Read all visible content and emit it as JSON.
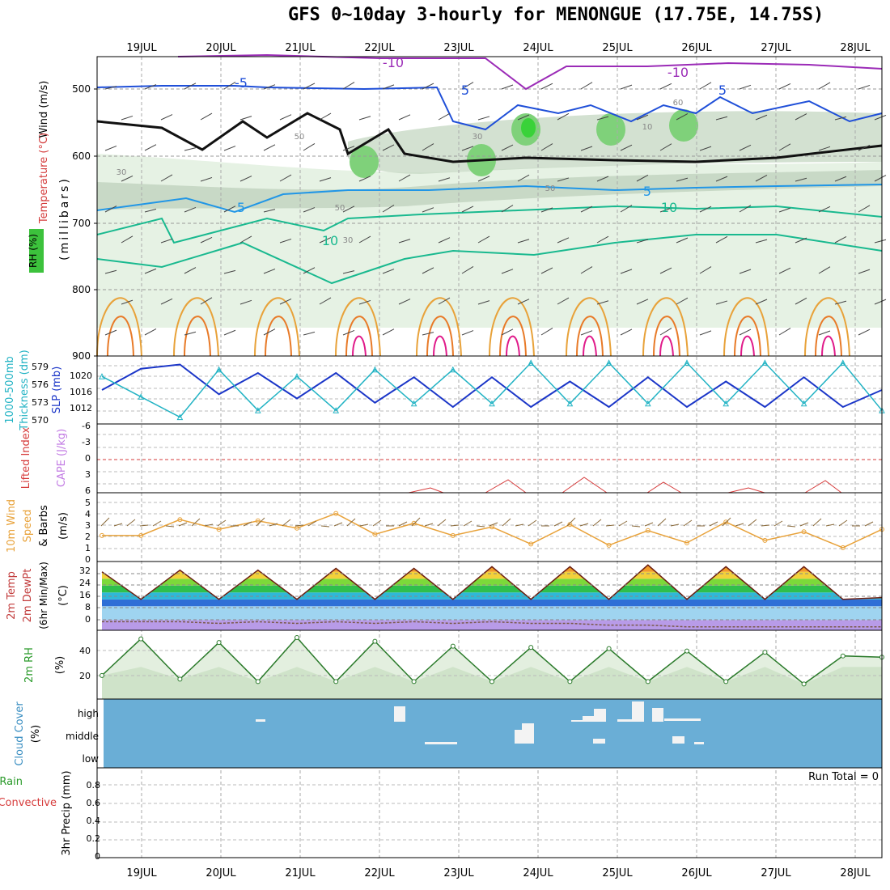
{
  "title": "GFS 0~10day 3-hourly for MENONGUE (17.75E, 14.75S)",
  "dates": [
    "19JUL",
    "20JUL",
    "21JUL",
    "22JUL",
    "23JUL",
    "24JUL",
    "25JUL",
    "26JUL",
    "27JUL",
    "28JUL"
  ],
  "colors": {
    "rh_light": "#e6f2e4",
    "rh_mid": "#c8d9c6",
    "rh_dark": "#a9b9a7",
    "rh_green": "#7fd17a",
    "rh_bright": "#39d239",
    "temp_minus10": "#9b2bb7",
    "temp_minus5": "#1f4fd8",
    "temp_0": "#111111",
    "temp_5": "#2196e6",
    "temp_10": "#19b98f",
    "temp_15": "#e8a23a",
    "temp_20": "#e87a28",
    "temp_25": "#e01b8a",
    "temp_green": "#1fc36f",
    "slp": "#1b36c8",
    "thickness": "#22b3c4",
    "lifted": "#d63b3b",
    "wind10": "#e8a23a",
    "barb": "#555555",
    "cloud_bg": "#6aaed6",
    "cloud_bar": "#f3f3f3",
    "rh2m": "#6bbf6b"
  },
  "panels": {
    "upper": {
      "labels": [
        "Wind (m/s)",
        "Temperature (°C)",
        "RH (%)",
        "(millibars)"
      ],
      "ticks": [
        "500",
        "600",
        "700",
        "800",
        "900"
      ],
      "contour_labels": [
        "-10",
        "-10",
        "-5",
        "5",
        "5",
        "5",
        "5",
        "10",
        "10",
        "30",
        "30",
        "50",
        "50",
        "50",
        "10",
        "30",
        "60"
      ]
    },
    "slp": {
      "labels": [
        "1000-500mb",
        "Thickness (dm)",
        "SLP (mb)"
      ],
      "left_ticks": [
        "579",
        "576",
        "573",
        "570"
      ],
      "right_ticks": [
        "1020",
        "1016",
        "1012"
      ]
    },
    "cape": {
      "labels": [
        "Lifted Index",
        "CAPE (J/kg)"
      ],
      "ticks": [
        "-6",
        "-3",
        "0",
        "3",
        "6"
      ]
    },
    "wind10": {
      "labels": [
        "10m Wind",
        "Speed",
        "& Barbs",
        "(m/s)"
      ],
      "ticks": [
        "5",
        "4",
        "3",
        "2",
        "1",
        "0"
      ]
    },
    "temp": {
      "labels": [
        "2m Temp",
        "2m DewPt",
        "(6hr Min/Max)",
        "(°C)"
      ],
      "ticks": [
        "32",
        "24",
        "16",
        "8",
        "0"
      ]
    },
    "rh2m": {
      "labels": [
        "2m RH",
        "(%)"
      ],
      "ticks": [
        "40",
        "20"
      ]
    },
    "cloud": {
      "labels": [
        "Cloud Cover",
        "(%)"
      ],
      "levels": [
        "high",
        "middle",
        "low"
      ]
    },
    "precip": {
      "labels": [
        "Total / Rain",
        "Convective",
        "3hr Precip (mm)"
      ],
      "ticks": [
        "0.8",
        "0.6",
        "0.4",
        "0.2",
        "0"
      ],
      "run_total": "Run Total = 0"
    }
  },
  "chart_data": [
    {
      "type": "line",
      "title": "SLP (mb)",
      "x": [
        "18JUL12",
        "19JUL00",
        "19JUL12",
        "20JUL00",
        "20JUL12",
        "21JUL00",
        "21JUL12",
        "22JUL00",
        "22JUL12",
        "23JUL00",
        "23JUL12",
        "24JUL00",
        "24JUL12",
        "25JUL00",
        "25JUL12",
        "26JUL00",
        "26JUL12",
        "27JUL00",
        "27JUL12",
        "28JUL00",
        "28JUL06"
      ],
      "series": [
        {
          "name": "SLP (mb)",
          "values": [
            1016,
            1021,
            1022,
            1015,
            1020,
            1014,
            1020,
            1013,
            1019,
            1012,
            1019,
            1012,
            1018,
            1012,
            1019,
            1012,
            1018,
            1012,
            1019,
            1012,
            1016
          ]
        },
        {
          "name": "1000-500mb Thickness (dm)",
          "values": [
            577,
            574,
            571,
            578,
            572,
            577,
            572,
            578,
            573,
            578,
            573,
            579,
            573,
            579,
            573,
            579,
            573,
            579,
            573,
            579,
            572
          ]
        }
      ]
    },
    {
      "type": "line",
      "title": "10m Wind Speed (m/s)",
      "x": [
        "18JUL12",
        "19JUL00",
        "19JUL12",
        "20JUL00",
        "20JUL12",
        "21JUL00",
        "21JUL12",
        "22JUL00",
        "22JUL12",
        "23JUL00",
        "23JUL12",
        "24JUL00",
        "24JUL12",
        "25JUL00",
        "25JUL12",
        "26JUL00",
        "26JUL12",
        "27JUL00",
        "27JUL12",
        "28JUL00",
        "28JUL06"
      ],
      "series": [
        {
          "name": "Speed",
          "values": [
            2.0,
            2.0,
            3.3,
            2.5,
            3.2,
            2.6,
            3.8,
            2.1,
            3.0,
            2.0,
            2.7,
            1.3,
            2.9,
            1.2,
            2.4,
            1.4,
            3.1,
            1.6,
            2.3,
            1.0,
            2.5
          ]
        }
      ],
      "ylim": [
        0,
        5.5
      ]
    },
    {
      "type": "area",
      "title": "2m Temp (°C)",
      "x": [
        "18JUL12",
        "19JUL00",
        "19JUL12",
        "20JUL00",
        "20JUL12",
        "21JUL00",
        "21JUL12",
        "22JUL00",
        "22JUL12",
        "23JUL00",
        "23JUL12",
        "24JUL00",
        "24JUL12",
        "25JUL00",
        "25JUL12",
        "26JUL00",
        "26JUL12",
        "27JUL00",
        "27JUL12",
        "28JUL00",
        "28JUL06"
      ],
      "series": [
        {
          "name": "2m Temp",
          "values": [
            28,
            12,
            29,
            12,
            29,
            12,
            30,
            12,
            30,
            12,
            31,
            12,
            31,
            12,
            32,
            12,
            31,
            12,
            31,
            12,
            13
          ]
        },
        {
          "name": "2m DewPt",
          "values": [
            -1,
            -1,
            -1,
            -2,
            -1,
            -2,
            -1,
            -2,
            -1,
            -2,
            -1,
            -2,
            -2,
            -3,
            -3,
            -4,
            -4,
            -4,
            -4,
            -4,
            -4
          ]
        }
      ],
      "ylim": [
        -6,
        34
      ]
    },
    {
      "type": "line",
      "title": "2m RH (%)",
      "x": [
        "18JUL12",
        "19JUL00",
        "19JUL12",
        "20JUL00",
        "20JUL12",
        "21JUL00",
        "21JUL12",
        "22JUL00",
        "22JUL12",
        "23JUL00",
        "23JUL12",
        "24JUL00",
        "24JUL12",
        "25JUL00",
        "25JUL12",
        "26JUL00",
        "26JUL12",
        "27JUL00",
        "27JUL12",
        "28JUL00",
        "28JUL06"
      ],
      "series": [
        {
          "name": "2m RH",
          "values": [
            18,
            48,
            15,
            45,
            13,
            49,
            13,
            46,
            13,
            42,
            13,
            41,
            13,
            40,
            13,
            38,
            13,
            37,
            11,
            34,
            33
          ]
        }
      ],
      "ylim": [
        0,
        55
      ]
    },
    {
      "type": "bar",
      "title": "3hr Precip (mm)",
      "categories": [
        "19JUL",
        "20JUL",
        "21JUL",
        "22JUL",
        "23JUL",
        "24JUL",
        "25JUL",
        "26JUL",
        "27JUL",
        "28JUL"
      ],
      "values": [
        0,
        0,
        0,
        0,
        0,
        0,
        0,
        0,
        0,
        0
      ],
      "ylim": [
        0,
        0.9
      ]
    }
  ]
}
